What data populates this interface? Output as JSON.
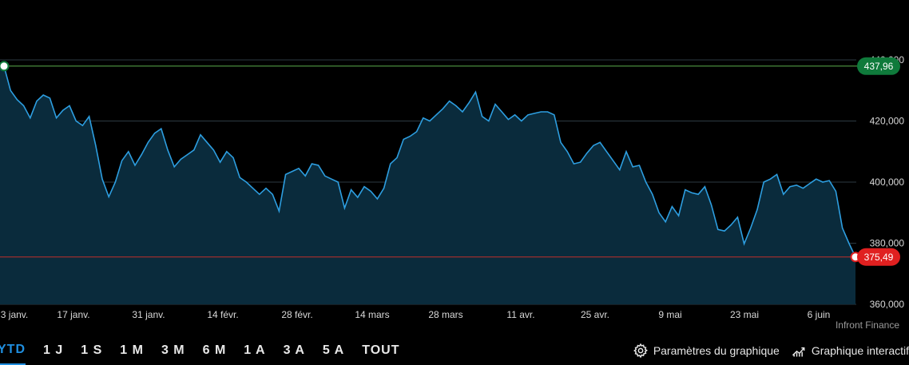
{
  "chart_data": {
    "type": "area",
    "x_tick_labels": [
      "3 janv.",
      "17 janv.",
      "31 janv.",
      "14 févr.",
      "28 févr.",
      "14 mars",
      "28 mars",
      "11 avr.",
      "25 avr.",
      "9 mai",
      "23 mai",
      "6 juin"
    ],
    "y_tick_labels": [
      "360,000",
      "380,000",
      "400,000",
      "420,000",
      "440,000"
    ],
    "ylim": [
      360000,
      440000
    ],
    "grid": true,
    "values": [
      437960,
      430000,
      427000,
      425000,
      421000,
      426500,
      428500,
      427500,
      421000,
      423500,
      425000,
      420000,
      418500,
      421500,
      412000,
      401000,
      395200,
      400000,
      407000,
      410000,
      405500,
      409000,
      413000,
      416000,
      417500,
      410500,
      405000,
      407500,
      409000,
      410500,
      415500,
      413000,
      410500,
      406500,
      410000,
      408000,
      401500,
      400000,
      398000,
      396000,
      398000,
      396000,
      390500,
      402500,
      403500,
      404500,
      402000,
      406000,
      405500,
      402000,
      401000,
      400000,
      391500,
      397500,
      395000,
      398500,
      397000,
      394500,
      398000,
      406000,
      408000,
      414000,
      415000,
      416500,
      421000,
      420000,
      422000,
      424000,
      426500,
      425000,
      423000,
      426000,
      429500,
      421500,
      420000,
      425500,
      423000,
      420500,
      422000,
      420000,
      422000,
      422500,
      423000,
      423000,
      422000,
      413000,
      410000,
      406000,
      406500,
      409500,
      412000,
      413000,
      410000,
      407000,
      404000,
      410000,
      405000,
      405500,
      400000,
      396000,
      390000,
      387000,
      392000,
      389000,
      397500,
      396500,
      396000,
      398500,
      392500,
      384500,
      384000,
      386000,
      388500,
      379800,
      385000,
      391000,
      400000,
      401000,
      402500,
      396000,
      398500,
      399000,
      398000,
      399500,
      401000,
      400000,
      400500,
      397000,
      385000,
      380000,
      375490
    ],
    "high_badge": "437,96",
    "low_badge": "375,49",
    "colors": {
      "line": "#2d9ee0",
      "area": "#0a2b3c",
      "grid": "#2c3a42",
      "high_line": "#5aae4d",
      "high_badge_bg": "#0f7a3b",
      "low_line": "#c0302a",
      "low_badge_bg": "#e02020"
    }
  },
  "source": "Infront Finance",
  "ranges": [
    "YTD",
    "1 J",
    "1 S",
    "1 M",
    "3 M",
    "6 M",
    "1 A",
    "3 A",
    "5 A",
    "TOUT"
  ],
  "active_range": "YTD",
  "tools": {
    "settings_label": "Paramètres du graphique",
    "settings_icon": "gear-icon",
    "interactive_label": "Graphique interactif",
    "interactive_icon": "chart-line-icon"
  }
}
